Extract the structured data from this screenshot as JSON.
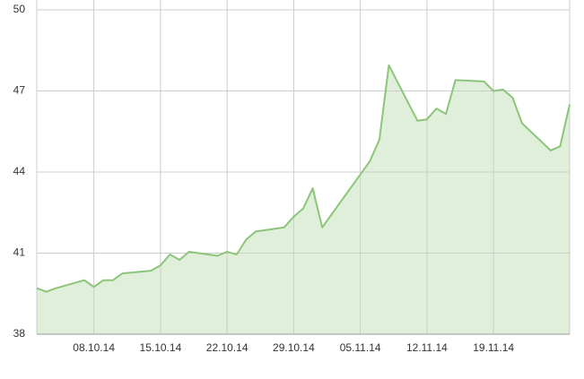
{
  "chart_data": {
    "type": "area",
    "x": [
      "02.10.14",
      "03.10.14",
      "04.10.14",
      "07.10.14",
      "08.10.14",
      "09.10.14",
      "10.10.14",
      "11.10.14",
      "14.10.14",
      "15.10.14",
      "16.10.14",
      "17.10.14",
      "18.10.14",
      "21.10.14",
      "22.10.14",
      "23.10.14",
      "24.10.14",
      "25.10.14",
      "28.10.14",
      "29.10.14",
      "30.10.14",
      "31.10.14",
      "01.11.14",
      "06.11.14",
      "07.11.14",
      "08.11.14",
      "11.11.14",
      "12.11.14",
      "13.11.14",
      "14.11.14",
      "15.11.14",
      "18.11.14",
      "19.11.14",
      "20.11.14",
      "21.11.14",
      "22.11.14",
      "25.11.14",
      "26.11.14",
      "27.11.14"
    ],
    "values": [
      39.7,
      39.57,
      39.7,
      40.0,
      39.75,
      40.0,
      40.0,
      40.25,
      40.35,
      40.55,
      40.95,
      40.75,
      41.05,
      40.9,
      41.05,
      40.95,
      41.5,
      41.8,
      41.95,
      42.35,
      42.65,
      43.4,
      41.95,
      44.4,
      45.2,
      47.95,
      45.9,
      45.95,
      46.35,
      46.15,
      47.4,
      47.35,
      47.0,
      47.05,
      46.75,
      45.8,
      44.8,
      44.95,
      46.5
    ],
    "color": "#8cc57a",
    "area_color": "#dfefd9",
    "xlim": [
      "02.10.14",
      "27.11.14"
    ],
    "xticks": [
      "08.10.14",
      "15.10.14",
      "22.10.14",
      "29.10.14",
      "05.11.14",
      "12.11.14",
      "19.11.14"
    ],
    "ylim": [
      38,
      50
    ],
    "yticks": [
      38,
      41,
      44,
      47,
      50
    ],
    "grid": true
  }
}
